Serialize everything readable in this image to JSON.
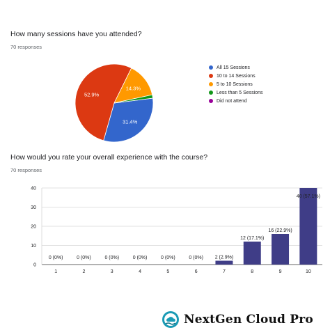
{
  "questions": [
    {
      "title": "How many sessions have you attended?",
      "responses": "70 responses"
    },
    {
      "title": "How would you rate your overall experience with the course?",
      "responses": "70 responses"
    }
  ],
  "brand": {
    "name": "NextGen  Cloud Pro",
    "logo_icon": "cloud-hand-logo-icon"
  },
  "chart_data": [
    {
      "type": "pie",
      "title": "How many sessions have you attended?",
      "slices": [
        {
          "label": "All 15 Sessions",
          "value": 31.4,
          "display": "31.4%",
          "color": "#3366cc"
        },
        {
          "label": "10 to 14 Sessions",
          "value": 52.9,
          "display": "52.9%",
          "color": "#dc3912"
        },
        {
          "label": "5 to 10 Sessions",
          "value": 14.3,
          "display": "14.3%",
          "color": "#ff9900"
        },
        {
          "label": "Less than 5 Sessions",
          "value": 1.4,
          "display": "",
          "color": "#109618"
        },
        {
          "label": "Did not attend",
          "value": 0,
          "display": "",
          "color": "#990099"
        }
      ],
      "legend": "right"
    },
    {
      "type": "bar",
      "title": "How would you rate your overall experience with the course?",
      "categories": [
        "1",
        "2",
        "3",
        "4",
        "5",
        "6",
        "7",
        "8",
        "9",
        "10"
      ],
      "values": [
        0,
        0,
        0,
        0,
        0,
        0,
        2,
        12,
        16,
        40
      ],
      "data_labels": [
        "0 (0%)",
        "0 (0%)",
        "0 (0%)",
        "0 (0%)",
        "0 (0%)",
        "0 (0%)",
        "2 (2.9%)",
        "12 (17.1%)",
        "16 (22.9%)",
        "40 (57.1%)"
      ],
      "y_ticks": [
        "0",
        "10",
        "20",
        "30",
        "40"
      ],
      "ylim": [
        0,
        40
      ],
      "bar_color": "#3f3d87",
      "grid": true
    }
  ]
}
